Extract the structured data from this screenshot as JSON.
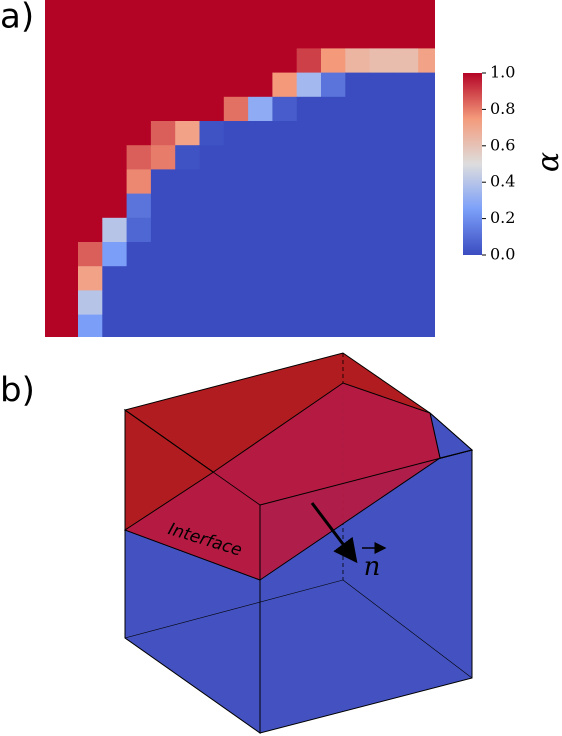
{
  "chart_data": {
    "type": "heatmap",
    "panel_label": "a)",
    "colorbar_label": "α",
    "colors": [
      "#3b4cc0",
      "#7b9ff9",
      "#dddddd",
      "#f49a7b",
      "#b40426"
    ],
    "zlim": [
      0,
      1
    ],
    "zticks": [
      {
        "value": 0,
        "label": "0.0"
      },
      0.2,
      0.4,
      0.6,
      0.8,
      {
        "value": 1,
        "label": "1.0"
      }
    ],
    "values": [
      [
        1,
        1,
        1,
        1,
        1,
        1,
        1,
        1,
        1,
        1,
        1,
        1,
        1,
        1,
        1,
        1,
        1
      ],
      [
        1,
        1,
        1,
        1,
        1,
        1,
        1,
        1,
        1,
        1,
        1,
        1,
        1,
        1,
        1,
        1,
        1
      ],
      [
        1,
        1,
        1,
        1,
        1,
        1,
        1,
        1,
        1,
        1,
        1,
        0.9,
        0.75,
        0.65,
        0.62,
        0.62,
        0.72
      ],
      [
        1,
        1,
        1,
        1,
        1,
        1,
        1,
        1,
        1,
        1,
        0.75,
        0.35,
        0.12,
        0,
        0,
        0,
        0
      ],
      [
        1,
        1,
        1,
        1,
        1,
        1,
        1,
        1,
        0.82,
        0.3,
        0.05,
        0,
        0,
        0,
        0,
        0,
        0
      ],
      [
        1,
        1,
        1,
        1,
        1,
        0.85,
        0.72,
        0.02,
        0,
        0,
        0,
        0,
        0,
        0,
        0,
        0,
        0
      ],
      [
        1,
        1,
        1,
        1,
        0.85,
        0.8,
        0.02,
        0,
        0,
        0,
        0,
        0,
        0,
        0,
        0,
        0,
        0
      ],
      [
        1,
        1,
        1,
        1,
        0.78,
        0,
        0,
        0,
        0,
        0,
        0,
        0,
        0,
        0,
        0,
        0,
        0
      ],
      [
        1,
        1,
        1,
        1,
        0.12,
        0,
        0,
        0,
        0,
        0,
        0,
        0,
        0,
        0,
        0,
        0,
        0
      ],
      [
        1,
        1,
        1,
        0.4,
        0.08,
        0,
        0,
        0,
        0,
        0,
        0,
        0,
        0,
        0,
        0,
        0,
        0
      ],
      [
        1,
        1,
        0.85,
        0.25,
        0,
        0,
        0,
        0,
        0,
        0,
        0,
        0,
        0,
        0,
        0,
        0,
        0
      ],
      [
        1,
        1,
        0.72,
        0,
        0,
        0,
        0,
        0,
        0,
        0,
        0,
        0,
        0,
        0,
        0,
        0,
        0
      ],
      [
        1,
        1,
        0.4,
        0,
        0,
        0,
        0,
        0,
        0,
        0,
        0,
        0,
        0,
        0,
        0,
        0,
        0
      ],
      [
        1,
        1,
        0.25,
        0,
        0,
        0,
        0,
        0,
        0,
        0,
        0,
        0,
        0,
        0,
        0,
        0,
        0
      ]
    ]
  },
  "diagram": {
    "panel_label": "b)",
    "interface_label": "Interface",
    "normal_label": "n"
  }
}
